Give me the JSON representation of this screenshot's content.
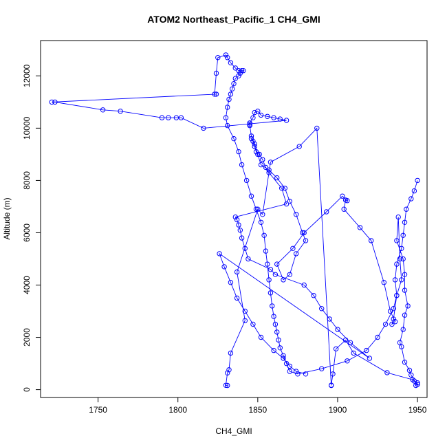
{
  "chart_data": {
    "type": "line",
    "title": "ATOM2 Northeast_Pacific_1 CH4_GMI",
    "xlabel": "CH4_GMI",
    "ylabel": "Altitude (m)",
    "xlim": [
      1714,
      1956
    ],
    "ylim": [
      -300,
      13350
    ],
    "xticks": [
      1750,
      1800,
      1850,
      1900,
      1950
    ],
    "yticks": [
      0,
      2000,
      4000,
      6000,
      8000,
      10000,
      12000
    ],
    "series_color": "#0000FF",
    "marker": "open-circle",
    "grid": false,
    "x": [
      1831,
      1830,
      1831,
      1832,
      1833,
      1842,
      1837,
      1850,
      1853,
      1858,
      1876,
      1887,
      1896,
      1896,
      1897,
      1899,
      1905,
      1910,
      1931,
      1947,
      1950,
      1949,
      1950,
      1948,
      1946,
      1945,
      1942,
      1940,
      1939,
      1941,
      1942,
      1944,
      1942,
      1942,
      1941,
      1937,
      1938,
      1939,
      1940,
      1937,
      1935,
      1934,
      1936,
      1933,
      1929,
      1921,
      1914,
      1904,
      1905,
      1906,
      1903,
      1893,
      1879,
      1872,
      1862,
      1866,
      1870,
      1874,
      1880,
      1878,
      1874,
      1870,
      1867,
      1862,
      1857,
      1852,
      1850,
      1848,
      1846,
      1845,
      1845,
      1845,
      1847,
      1848,
      1850,
      1852,
      1856,
      1860,
      1864,
      1868,
      1816,
      1802,
      1799,
      1794,
      1790,
      1764,
      1753,
      1723,
      1721,
      1824,
      1823,
      1824,
      1825,
      1830,
      1831,
      1833,
      1836,
      1838,
      1840,
      1841,
      1839,
      1838,
      1836,
      1835,
      1834,
      1833,
      1832,
      1831,
      1830,
      1831,
      1835,
      1838,
      1840,
      1843,
      1846,
      1849,
      1852,
      1854,
      1855,
      1856,
      1857,
      1858,
      1859,
      1860,
      1861,
      1862,
      1863,
      1864,
      1866,
      1868,
      1870,
      1875,
      1890,
      1906,
      1918,
      1925,
      1930,
      1935,
      1937,
      1936,
      1937,
      1940,
      1941,
      1942,
      1943,
      1946,
      1948,
      1950
    ],
    "y": [
      160,
      165,
      640,
      760,
      1400,
      2640,
      4500,
      6900,
      6700,
      8700,
      9300,
      10000,
      160,
      170,
      600,
      1560,
      1900,
      1400,
      650,
      380,
      200,
      160,
      260,
      330,
      560,
      740,
      1050,
      1640,
      1800,
      2300,
      2850,
      3200,
      3800,
      4400,
      5000,
      5700,
      6600,
      5000,
      4200,
      3600,
      2700,
      2500,
      2600,
      3000,
      4100,
      5700,
      6200,
      6900,
      7250,
      7230,
      7400,
      6800,
      6000,
      5400,
      4800,
      4200,
      4400,
      5200,
      5700,
      6000,
      6700,
      7200,
      7700,
      8100,
      8400,
      8600,
      9000,
      9400,
      9700,
      10100,
      10150,
      10200,
      10400,
      10600,
      10650,
      10500,
      10450,
      10400,
      10350,
      10300,
      10000,
      10400,
      10400,
      10400,
      10400,
      10650,
      10700,
      11000,
      11000,
      11300,
      11300,
      12100,
      12700,
      12800,
      12700,
      12500,
      12300,
      12200,
      12200,
      12200,
      12100,
      12000,
      11900,
      11700,
      11500,
      11300,
      11100,
      10800,
      10400,
      10100,
      9600,
      9100,
      8600,
      8000,
      7400,
      6900,
      6400,
      5900,
      5300,
      4800,
      4200,
      3700,
      3200,
      2800,
      2500,
      2200,
      1900,
      1600,
      1300,
      1000,
      700,
      600,
      800,
      1100,
      1500,
      2000,
      2500,
      3100,
      3600,
      4200,
      4800,
      5400,
      5900,
      6400,
      6900,
      7300,
      7600,
      8000
    ],
    "extra_points": {
      "x": [
        1846,
        1847,
        1848,
        1849,
        1851,
        1853,
        1855,
        1857,
        1865,
        1868,
        1836,
        1837,
        1838,
        1839,
        1840,
        1842,
        1844,
        1858,
        1861,
        1879,
        1885,
        1890,
        1895,
        1900,
        1908,
        1920,
        1826,
        1829,
        1833,
        1837,
        1842,
        1847,
        1852,
        1860,
        1866,
        1870,
        1874,
        1880
      ],
      "y": [
        9600,
        9500,
        9300,
        9100,
        9000,
        8800,
        8500,
        8300,
        7700,
        7100,
        6600,
        6500,
        6300,
        6100,
        5800,
        5400,
        5000,
        4600,
        4400,
        4000,
        3600,
        3100,
        2700,
        2300,
        1800,
        1200,
        5200,
        4700,
        4100,
        3500,
        3000,
        2500,
        2000,
        1500,
        1200,
        900,
        700,
        600
      ]
    }
  }
}
